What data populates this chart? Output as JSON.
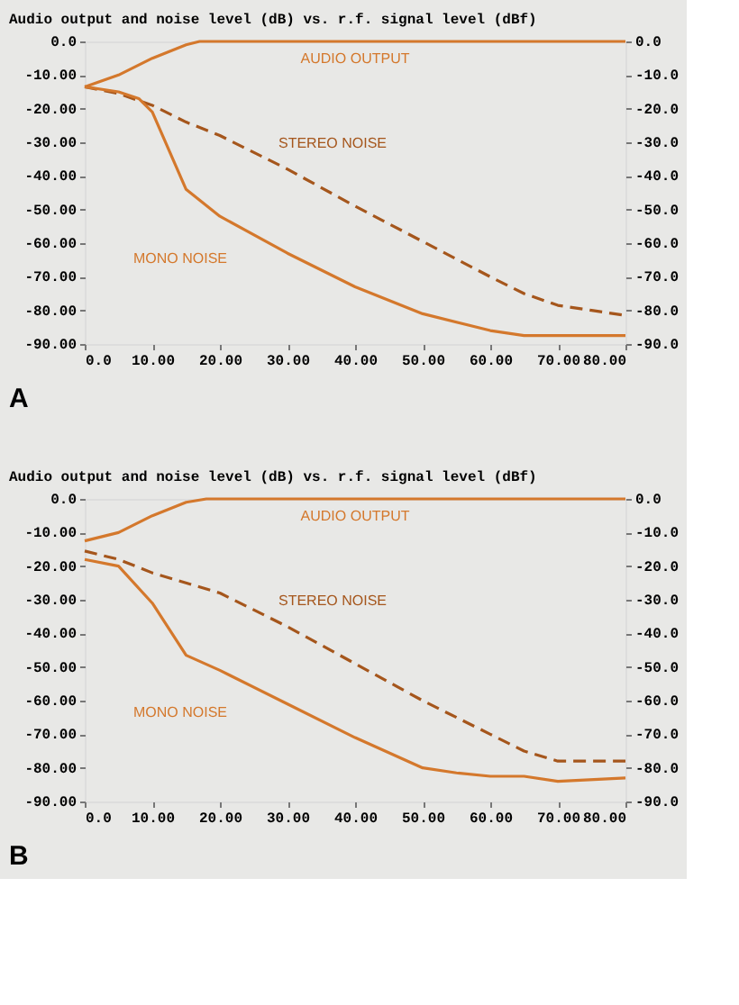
{
  "chart_data": [
    {
      "type": "line",
      "title": "Audio output and noise level (dB) vs. r.f. signal level (dBf)",
      "annotations": [
        "A"
      ],
      "series": [
        {
          "name": "AUDIO OUTPUT",
          "color": "#d4782c",
          "line_style": "solid",
          "x": [
            0,
            5,
            10,
            15,
            17,
            20,
            40,
            60,
            80
          ],
          "values": [
            -13.5,
            -10,
            -5,
            -1,
            0,
            0,
            0,
            0,
            0
          ]
        },
        {
          "name": "STEREO NOISE",
          "color": "#a5561c",
          "line_style": "dashed",
          "x": [
            0,
            5,
            10,
            15,
            20,
            30,
            40,
            50,
            60,
            65,
            70,
            75,
            80
          ],
          "values": [
            -13.5,
            -15.5,
            -19,
            -24,
            -28,
            -38,
            -49,
            -59.5,
            -70,
            -75,
            -78.5,
            -80,
            -81.5
          ]
        },
        {
          "name": "MONO NOISE",
          "color": "#d4782c",
          "line_style": "solid",
          "x": [
            0,
            5,
            8,
            10,
            15,
            20,
            30,
            40,
            50,
            60,
            65,
            80
          ],
          "values": [
            -13.5,
            -15,
            -17,
            -21,
            -44,
            -52,
            -63,
            -73,
            -81,
            -86,
            -87.5,
            -87.5
          ]
        }
      ],
      "xlim": [
        0,
        80
      ],
      "ylim": [
        -90,
        0
      ],
      "y2lim": [
        -90,
        0
      ],
      "xticks": [
        {
          "value": 0,
          "label": "0.0"
        },
        {
          "value": 10,
          "label": "10.00"
        },
        {
          "value": 20,
          "label": "20.00"
        },
        {
          "value": 30,
          "label": "30.00"
        },
        {
          "value": 40,
          "label": "40.00"
        },
        {
          "value": 50,
          "label": "50.00"
        },
        {
          "value": 60,
          "label": "60.00"
        },
        {
          "value": 70,
          "label": "70.00"
        },
        {
          "value": 80,
          "label": "80.00"
        }
      ],
      "yticks": [
        {
          "value": 0,
          "label": "0.0"
        },
        {
          "value": -10,
          "label": "-10.00"
        },
        {
          "value": -20,
          "label": "-20.00"
        },
        {
          "value": -30,
          "label": "-30.00"
        },
        {
          "value": -40,
          "label": "-40.00"
        },
        {
          "value": -50,
          "label": "-50.00"
        },
        {
          "value": -60,
          "label": "-60.00"
        },
        {
          "value": -70,
          "label": "-70.00"
        },
        {
          "value": -80,
          "label": "-80.00"
        },
        {
          "value": -90,
          "label": "-90.00"
        }
      ],
      "y2ticks": [
        {
          "value": 0,
          "label": "0.0"
        },
        {
          "value": -10,
          "label": "-10.0"
        },
        {
          "value": -20,
          "label": "-20.0"
        },
        {
          "value": -30,
          "label": "-30.0"
        },
        {
          "value": -40,
          "label": "-40.0"
        },
        {
          "value": -50,
          "label": "-50.0"
        },
        {
          "value": -60,
          "label": "-60.0"
        },
        {
          "value": -70,
          "label": "-70.0"
        },
        {
          "value": -80,
          "label": "-80.0"
        },
        {
          "value": -90,
          "label": "-90.0"
        }
      ],
      "grid": false
    },
    {
      "type": "line",
      "title": "Audio output and noise level (dB) vs. r.f. signal level (dBf)",
      "annotations": [
        "B"
      ],
      "series": [
        {
          "name": "AUDIO OUTPUT",
          "color": "#d4782c",
          "line_style": "solid",
          "x": [
            0,
            5,
            10,
            15,
            18,
            20,
            40,
            60,
            80
          ],
          "values": [
            -12.5,
            -10,
            -5,
            -1,
            0,
            0,
            0,
            0,
            0
          ]
        },
        {
          "name": "STEREO NOISE",
          "color": "#a5561c",
          "line_style": "dashed",
          "x": [
            0,
            5,
            10,
            20,
            30,
            40,
            50,
            60,
            65,
            70,
            80
          ],
          "values": [
            -15.5,
            -18,
            -22,
            -28,
            -38,
            -49,
            -60,
            -70,
            -75,
            -78,
            -78
          ]
        },
        {
          "name": "MONO NOISE",
          "color": "#d4782c",
          "line_style": "solid",
          "x": [
            0,
            5,
            10,
            15,
            20,
            30,
            40,
            50,
            55,
            60,
            65,
            70,
            80
          ],
          "values": [
            -18,
            -20,
            -31,
            -46.5,
            -51,
            -61,
            -71,
            -80,
            -81.5,
            -82.5,
            -82.5,
            -84,
            -83
          ]
        }
      ],
      "xlim": [
        0,
        80
      ],
      "ylim": [
        -90,
        0
      ],
      "y2lim": [
        -90,
        0
      ],
      "xticks": [
        {
          "value": 0,
          "label": "0.0"
        },
        {
          "value": 10,
          "label": "10.00"
        },
        {
          "value": 20,
          "label": "20.00"
        },
        {
          "value": 30,
          "label": "30.00"
        },
        {
          "value": 40,
          "label": "40.00"
        },
        {
          "value": 50,
          "label": "50.00"
        },
        {
          "value": 60,
          "label": "60.00"
        },
        {
          "value": 70,
          "label": "70.00"
        },
        {
          "value": 80,
          "label": "80.00"
        }
      ],
      "yticks": [
        {
          "value": 0,
          "label": "0.0"
        },
        {
          "value": -10,
          "label": "-10.00"
        },
        {
          "value": -20,
          "label": "-20.00"
        },
        {
          "value": -30,
          "label": "-30.00"
        },
        {
          "value": -40,
          "label": "-40.00"
        },
        {
          "value": -50,
          "label": "-50.00"
        },
        {
          "value": -60,
          "label": "-60.00"
        },
        {
          "value": -70,
          "label": "-70.00"
        },
        {
          "value": -80,
          "label": "-80.00"
        },
        {
          "value": -90,
          "label": "-90.00"
        }
      ],
      "y2ticks": [
        {
          "value": 0,
          "label": "0.0"
        },
        {
          "value": -10,
          "label": "-10.0"
        },
        {
          "value": -20,
          "label": "-20.0"
        },
        {
          "value": -30,
          "label": "-30.0"
        },
        {
          "value": -40,
          "label": "-40.0"
        },
        {
          "value": -50,
          "label": "-50.0"
        },
        {
          "value": -60,
          "label": "-60.0"
        },
        {
          "value": -70,
          "label": "-70.0"
        },
        {
          "value": -80,
          "label": "-80.0"
        },
        {
          "value": -90,
          "label": "-90.0"
        }
      ],
      "grid": false
    }
  ]
}
